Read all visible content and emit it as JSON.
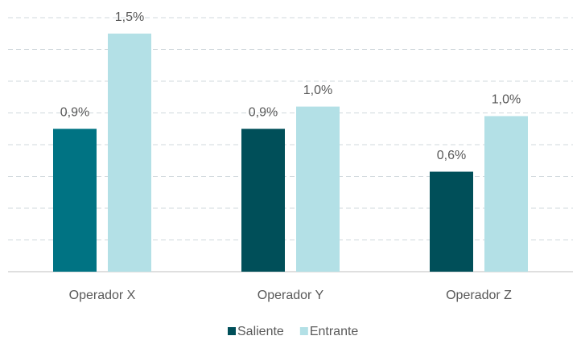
{
  "chart_data": {
    "type": "bar",
    "categories": [
      "Operador X",
      "Operador Y",
      "Operador Z"
    ],
    "series": [
      {
        "name": "Saliente",
        "color": "#004f59",
        "colors": [
          "#007383",
          "#004f59",
          "#004f59"
        ],
        "values": [
          0.9,
          0.9,
          0.63
        ],
        "value_labels": [
          "0,9%",
          "0,9%",
          "0,6%"
        ]
      },
      {
        "name": "Entrante",
        "color": "#b3e0e6",
        "colors": [
          "#b3e0e6",
          "#b3e0e6",
          "#b3e0e6"
        ],
        "values": [
          1.5,
          1.04,
          0.98
        ],
        "value_labels": [
          "1,5%",
          "1,0%",
          "1,0%"
        ]
      }
    ],
    "ylim": [
      0,
      1.6
    ],
    "yticks": [
      0,
      0.2,
      0.4,
      0.6,
      0.8,
      1.0,
      1.2,
      1.4,
      1.6
    ],
    "grid": true,
    "legend": "bottom"
  }
}
